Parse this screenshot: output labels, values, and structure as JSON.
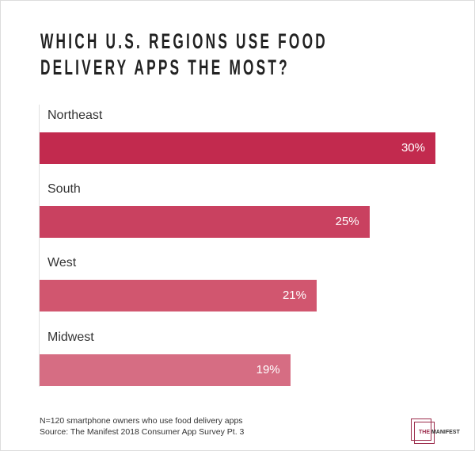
{
  "chart_data": {
    "type": "bar",
    "orientation": "horizontal",
    "title_lines": [
      "WHICH U.S. REGIONS USE FOOD",
      "DELIVERY APPS THE MOST?"
    ],
    "categories": [
      "Northeast",
      "South",
      "West",
      "Midwest"
    ],
    "values": [
      30,
      25,
      21,
      19
    ],
    "value_labels": [
      "30%",
      "25%",
      "21%",
      "19%"
    ],
    "colors": [
      "#c22a4e",
      "#c94160",
      "#d1566f",
      "#d66d83"
    ],
    "xlim": [
      0,
      30
    ],
    "xlabel": "",
    "ylabel": "",
    "grid": false
  },
  "footnote": {
    "sample": "N=120 smartphone owners who use food delivery apps",
    "source": "Source: The Manifest 2018 Consumer App Survey Pt. 3"
  },
  "logo": {
    "the": "THE",
    "name": "MANIFEST"
  }
}
